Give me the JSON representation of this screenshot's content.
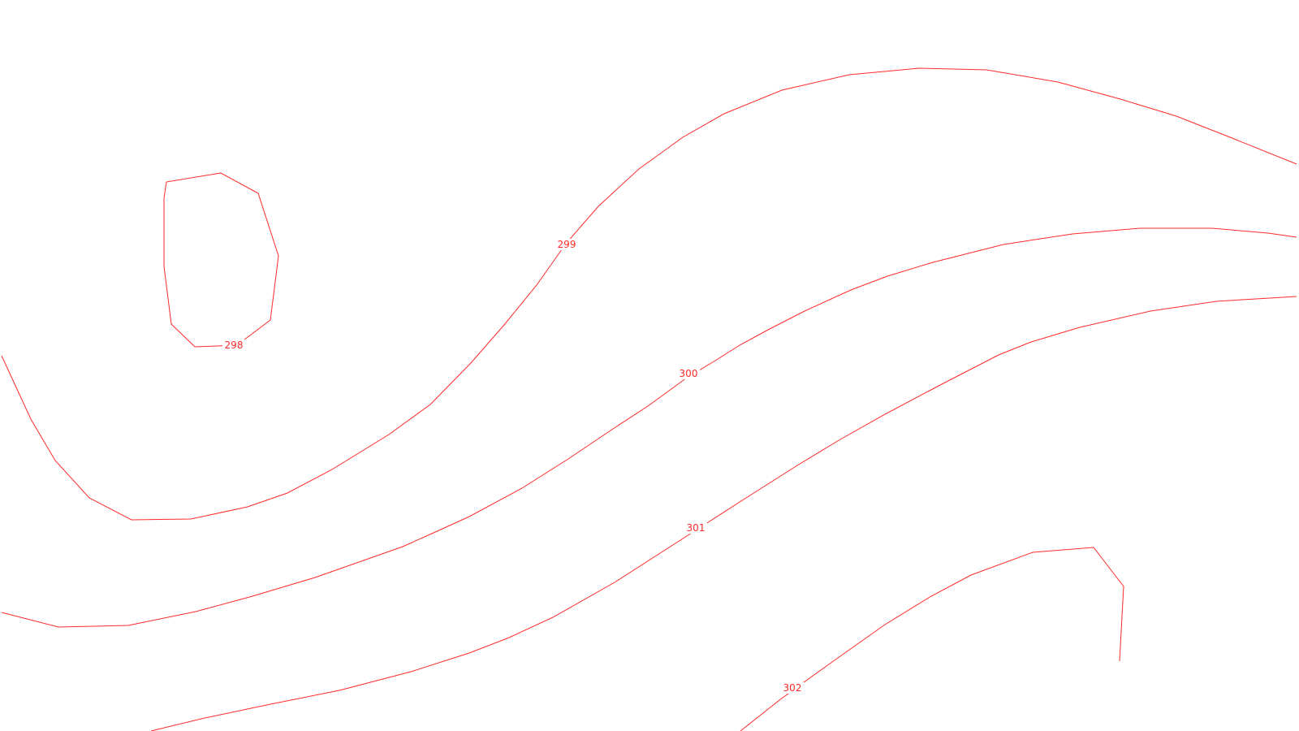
{
  "map": {
    "line_color": "#ff2a2a",
    "background_color": "#ffffff",
    "contours": [
      {
        "id": "298",
        "label": "298"
      },
      {
        "id": "299",
        "label": "299"
      },
      {
        "id": "300",
        "label": "300"
      },
      {
        "id": "301",
        "label": "301"
      },
      {
        "id": "302",
        "label": "302"
      }
    ]
  }
}
